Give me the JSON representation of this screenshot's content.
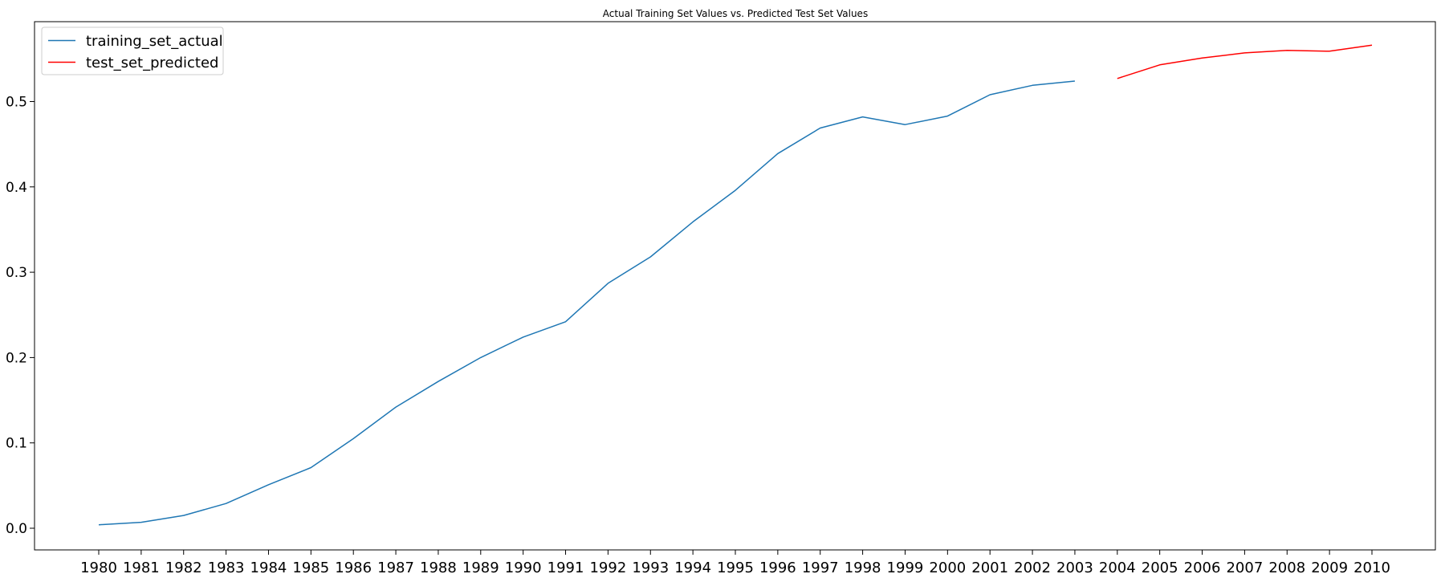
{
  "chart_data": {
    "type": "line",
    "title": "Actual Training Set Values vs. Predicted Test Set Values",
    "xlabel": "",
    "ylabel": "",
    "categories": [
      "1980",
      "1981",
      "1982",
      "1983",
      "1984",
      "1985",
      "1986",
      "1987",
      "1988",
      "1989",
      "1990",
      "1991",
      "1992",
      "1993",
      "1994",
      "1995",
      "1996",
      "1997",
      "1998",
      "1999",
      "2000",
      "2001",
      "2002",
      "2003",
      "2004",
      "2005",
      "2006",
      "2007",
      "2008",
      "2009",
      "2010"
    ],
    "yticks": [
      0.0,
      0.1,
      0.2,
      0.3,
      0.4,
      0.5
    ],
    "ytick_labels": [
      "0.0",
      "0.1",
      "0.2",
      "0.3",
      "0.4",
      "0.5"
    ],
    "ylim": [
      -0.025,
      0.59
    ],
    "grid": false,
    "legend_position": "top-left",
    "series": [
      {
        "name": "training_set_actual",
        "color": "#1f77b4",
        "x": [
          "1980",
          "1981",
          "1982",
          "1983",
          "1984",
          "1985",
          "1986",
          "1987",
          "1988",
          "1989",
          "1990",
          "1991",
          "1992",
          "1993",
          "1994",
          "1995",
          "1996",
          "1997",
          "1998",
          "1999",
          "2000",
          "2001",
          "2002",
          "2003"
        ],
        "values": [
          0.004,
          0.007,
          0.015,
          0.029,
          0.051,
          0.071,
          0.105,
          0.142,
          0.172,
          0.2,
          0.224,
          0.242,
          0.287,
          0.318,
          0.359,
          0.396,
          0.439,
          0.469,
          0.482,
          0.473,
          0.483,
          0.508,
          0.519,
          0.524
        ]
      },
      {
        "name": "test_set_predicted",
        "color": "#ff0000",
        "x": [
          "2004",
          "2005",
          "2006",
          "2007",
          "2008",
          "2009",
          "2010"
        ],
        "values": [
          0.527,
          0.543,
          0.551,
          0.557,
          0.56,
          0.559,
          0.566
        ]
      }
    ]
  }
}
